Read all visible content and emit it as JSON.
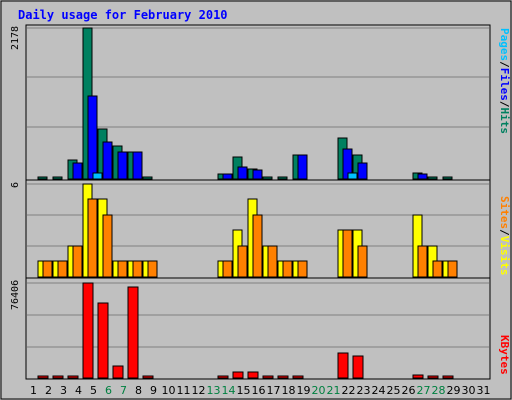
{
  "chart_data": {
    "type": "bar",
    "title": "Daily usage for February 2010",
    "days": [
      1,
      2,
      3,
      4,
      5,
      6,
      7,
      8,
      9,
      10,
      11,
      12,
      13,
      14,
      15,
      16,
      17,
      18,
      19,
      20,
      21,
      22,
      23,
      24,
      25,
      26,
      27,
      28,
      29,
      30,
      31
    ],
    "weekend_days": [
      6,
      7,
      13,
      14,
      20,
      21,
      27,
      28
    ],
    "panels": {
      "top": {
        "ymax_label": "2178",
        "ymax": 2178,
        "ylabel_parts": [
          "Pages",
          "/",
          "Files",
          "/",
          "Hits"
        ],
        "series": [
          {
            "name": "Hits",
            "color": "#008060",
            "values": [
              30,
              30,
              270,
              2178,
              720,
              480,
              390,
              30,
              0,
              0,
              0,
              0,
              70,
              320,
              150,
              30,
              30,
              340,
              0,
              0,
              590,
              340,
              0,
              0,
              0,
              90,
              30,
              30,
              0,
              0,
              0
            ]
          },
          {
            "name": "Files",
            "color": "#0000ff",
            "values": [
              0,
              0,
              230,
              1200,
              540,
              390,
              390,
              0,
              0,
              0,
              0,
              0,
              70,
              170,
              130,
              0,
              0,
              340,
              0,
              0,
              430,
              230,
              0,
              0,
              0,
              70,
              0,
              0,
              0,
              0,
              0
            ]
          },
          {
            "name": "Pages",
            "color": "#00c0ff",
            "values": [
              0,
              0,
              0,
              80,
              0,
              0,
              0,
              0,
              0,
              0,
              0,
              0,
              0,
              0,
              0,
              0,
              0,
              0,
              0,
              0,
              90,
              0,
              0,
              0,
              0,
              0,
              0,
              0,
              0,
              0,
              0
            ]
          }
        ]
      },
      "middle": {
        "ymax_label": "6",
        "ymax": 6,
        "ylabel_parts": [
          "Sites",
          "/",
          "Visits"
        ],
        "series": [
          {
            "name": "Visits",
            "color": "#ffff00",
            "values": [
              1,
              1,
              2,
              6,
              5,
              1,
              1,
              1,
              0,
              0,
              0,
              0,
              1,
              3,
              5,
              2,
              1,
              1,
              0,
              0,
              3,
              3,
              0,
              0,
              0,
              4,
              2,
              1,
              0,
              0,
              0
            ]
          },
          {
            "name": "Sites",
            "color": "#ff8000",
            "values": [
              1,
              1,
              2,
              5,
              4,
              1,
              1,
              1,
              0,
              0,
              0,
              0,
              1,
              2,
              4,
              2,
              1,
              1,
              0,
              0,
              3,
              2,
              0,
              0,
              0,
              2,
              1,
              1,
              0,
              0,
              0
            ]
          }
        ]
      },
      "bottom": {
        "ymax_label": "76406",
        "ymax": 76406,
        "ylabel_parts": [
          "KBytes"
        ],
        "series": [
          {
            "name": "KBytes",
            "color": "#ff0000",
            "values": [
              600,
              600,
              2000,
              76406,
              60000,
              10000,
              73000,
              600,
              0,
              0,
              0,
              0,
              600,
              4500,
              4500,
              600,
              600,
              2000,
              0,
              0,
              20000,
              18000,
              0,
              0,
              0,
              2500,
              600,
              600,
              0,
              0,
              0
            ]
          }
        ]
      }
    },
    "colors": {
      "plot_bg": "#c0c0c0",
      "frame": "#000000",
      "title": "#0000ff",
      "weekday_label": "#000000",
      "weekend_label": "#008040",
      "grid": "#808080",
      "pages_label": "#00c0ff",
      "files_label": "#0000ff",
      "hits_label": "#008060",
      "slash": "#000000",
      "sites_label": "#ff8000",
      "visits_label": "#ffff00",
      "kbytes_label": "#ff0000"
    }
  }
}
